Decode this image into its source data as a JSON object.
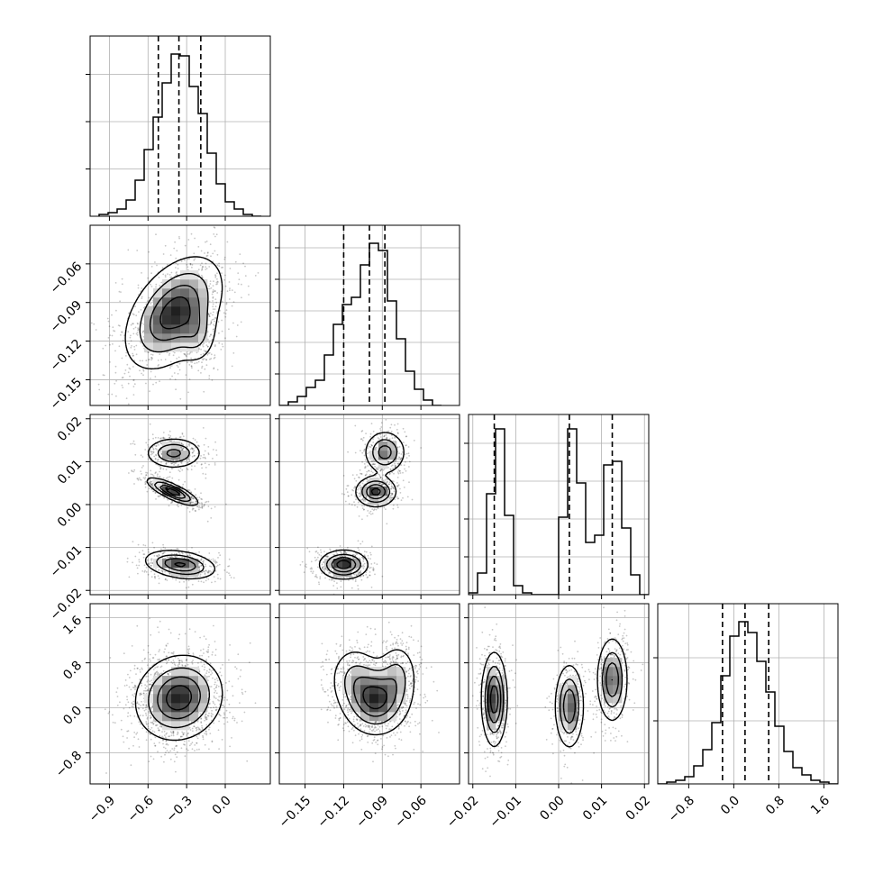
{
  "chart_data": {
    "type": "corner",
    "parameters": [
      {
        "range": [
          -1.05,
          0.35
        ],
        "ticks": [
          -0.9,
          -0.6,
          -0.3,
          0.0
        ],
        "tick_labels": [
          "−0.9",
          "−0.6",
          "−0.3",
          "0.0"
        ],
        "hist_ticks": 3,
        "quantiles": [
          -0.52,
          -0.36,
          -0.19
        ],
        "hist": {
          "x": [
            -0.98,
            -0.91,
            -0.84,
            -0.77,
            -0.7,
            -0.63,
            -0.56,
            -0.49,
            -0.42,
            -0.35,
            -0.28,
            -0.21,
            -0.14,
            -0.07,
            0.0,
            0.07,
            0.14,
            0.21
          ],
          "y": [
            0.01,
            0.02,
            0.04,
            0.09,
            0.2,
            0.37,
            0.55,
            0.74,
            0.9,
            0.89,
            0.72,
            0.57,
            0.35,
            0.18,
            0.08,
            0.04,
            0.01,
            0.0
          ]
        }
      },
      {
        "range": [
          -0.17,
          -0.03
        ],
        "ticks": [
          -0.15,
          -0.12,
          -0.09,
          -0.06
        ],
        "tick_labels": [
          "−0.15",
          "−0.12",
          "−0.09",
          "−0.06"
        ],
        "hist_ticks": 5,
        "quantiles": [
          -0.12,
          -0.1,
          -0.088
        ],
        "hist": {
          "x": [
            -0.17,
            -0.163,
            -0.156,
            -0.149,
            -0.142,
            -0.135,
            -0.128,
            -0.121,
            -0.114,
            -0.107,
            -0.1,
            -0.093,
            -0.086,
            -0.079,
            -0.072,
            -0.065,
            -0.058,
            -0.051
          ],
          "y": [
            0.0,
            0.02,
            0.05,
            0.1,
            0.14,
            0.28,
            0.45,
            0.56,
            0.6,
            0.78,
            0.9,
            0.86,
            0.58,
            0.37,
            0.19,
            0.09,
            0.03,
            0.0
          ]
        }
      },
      {
        "range": [
          -0.021,
          0.021
        ],
        "ticks": [
          -0.02,
          -0.01,
          0.0,
          0.01,
          0.02
        ],
        "tick_labels": [
          "−0.02",
          "−0.01",
          "0.00",
          "0.01",
          "0.02"
        ],
        "hist_ticks": 4,
        "quantiles": [
          -0.015,
          0.0025,
          0.0125
        ],
        "hist": {
          "x": [
            -0.021,
            -0.0189,
            -0.0168,
            -0.0147,
            -0.0126,
            -0.0105,
            -0.0084,
            -0.0063,
            -0.0042,
            -0.0021,
            0.0,
            0.0021,
            0.0042,
            0.0063,
            0.0084,
            0.0105,
            0.0126,
            0.0147,
            0.0168,
            0.0189
          ],
          "y": [
            0.01,
            0.12,
            0.56,
            0.92,
            0.44,
            0.05,
            0.01,
            0.0,
            0.0,
            0.0,
            0.43,
            0.92,
            0.62,
            0.29,
            0.33,
            0.72,
            0.74,
            0.37,
            0.11,
            0.0
          ]
        }
      },
      {
        "range": [
          -1.35,
          1.85
        ],
        "ticks": [
          -0.8,
          0.0,
          0.8,
          1.6
        ],
        "tick_labels": [
          "−0.8",
          "0.0",
          "0.8",
          "1.6"
        ],
        "hist_ticks": 2,
        "quantiles": [
          -0.2,
          0.2,
          0.62
        ],
        "hist": {
          "x": [
            -1.35,
            -1.19,
            -1.03,
            -0.87,
            -0.71,
            -0.55,
            -0.39,
            -0.23,
            -0.07,
            0.09,
            0.25,
            0.41,
            0.57,
            0.73,
            0.89,
            1.05,
            1.21,
            1.37,
            1.53,
            1.69
          ],
          "y": [
            0.0,
            0.01,
            0.02,
            0.04,
            0.1,
            0.19,
            0.34,
            0.6,
            0.82,
            0.9,
            0.84,
            0.68,
            0.51,
            0.32,
            0.18,
            0.09,
            0.05,
            0.02,
            0.01,
            0.0
          ]
        }
      }
    ],
    "pairs": [
      {
        "row": 1,
        "col": 0,
        "blobs": [
          {
            "cx": -0.4,
            "cy": -0.098,
            "sx": 0.19,
            "sy": 0.022,
            "w": 1.0,
            "rho": 0.45
          },
          {
            "cx": -0.22,
            "cy": -0.115,
            "sx": 0.08,
            "sy": 0.012,
            "w": 0.35,
            "rho": 0.0
          }
        ]
      },
      {
        "row": 2,
        "col": 0,
        "blobs": [
          {
            "cx": -0.4,
            "cy": 0.012,
            "sx": 0.11,
            "sy": 0.0018,
            "w": 0.55,
            "rho": 0.0
          },
          {
            "cx": -0.41,
            "cy": 0.003,
            "sx": 0.1,
            "sy": 0.0016,
            "w": 0.8,
            "rho": -0.8
          },
          {
            "cx": -0.35,
            "cy": -0.014,
            "sx": 0.14,
            "sy": 0.0017,
            "w": 0.7,
            "rho": -0.3
          }
        ]
      },
      {
        "row": 2,
        "col": 1,
        "blobs": [
          {
            "cx": -0.088,
            "cy": 0.0122,
            "sx": 0.008,
            "sy": 0.0025,
            "w": 0.6,
            "rho": 0.0
          },
          {
            "cx": -0.095,
            "cy": 0.003,
            "sx": 0.008,
            "sy": 0.0018,
            "w": 0.75,
            "rho": 0.0
          },
          {
            "cx": -0.12,
            "cy": -0.014,
            "sx": 0.0095,
            "sy": 0.0017,
            "w": 0.8,
            "rho": 0.0
          }
        ]
      },
      {
        "row": 3,
        "col": 0,
        "blobs": [
          {
            "cx": -0.36,
            "cy": 0.18,
            "sx": 0.17,
            "sy": 0.38,
            "w": 1.0,
            "rho": 0.1
          }
        ]
      },
      {
        "row": 3,
        "col": 1,
        "blobs": [
          {
            "cx": -0.095,
            "cy": 0.15,
            "sx": 0.013,
            "sy": 0.32,
            "w": 0.9,
            "rho": 0.0
          },
          {
            "cx": -0.112,
            "cy": 0.55,
            "sx": 0.01,
            "sy": 0.3,
            "w": 0.35,
            "rho": 0.0
          },
          {
            "cx": -0.078,
            "cy": 0.6,
            "sx": 0.008,
            "sy": 0.3,
            "w": 0.35,
            "rho": 0.0
          }
        ]
      },
      {
        "row": 3,
        "col": 2,
        "blobs": [
          {
            "cx": -0.015,
            "cy": 0.15,
            "sx": 0.0015,
            "sy": 0.42,
            "w": 0.9,
            "rho": 0.0
          },
          {
            "cx": 0.0025,
            "cy": 0.03,
            "sx": 0.0017,
            "sy": 0.38,
            "w": 0.75,
            "rho": 0.0
          },
          {
            "cx": 0.0125,
            "cy": 0.5,
            "sx": 0.0018,
            "sy": 0.38,
            "w": 0.75,
            "rho": 0.0
          }
        ]
      }
    ]
  }
}
